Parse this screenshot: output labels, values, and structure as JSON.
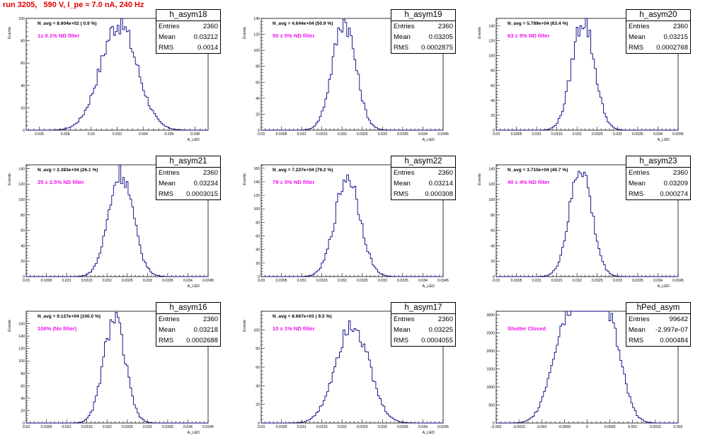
{
  "title": "run 3205,   590 V, I_pe ≈ 7.0 nA, 240 Hz",
  "axis_unit_label": "Events",
  "colors": {
    "hist_line": "#000080",
    "filter_text": "#ee11ee",
    "title_text": "#e00000"
  },
  "chart_data": [
    {
      "type": "histogram",
      "name": "h_asym18",
      "navg": "N_avg = 8.604e+02 ( 0.9 %)",
      "filter_label": "1± 0.1% ND filter",
      "stats": {
        "Entries": "2360",
        "Mean": "0.03212",
        "RMS": "0.0014"
      },
      "xlim": [
        0.025,
        0.039
      ],
      "ylim": [
        0,
        100
      ],
      "xticks": [
        "0.026",
        "0.028",
        "0.03",
        "0.032",
        "0.034",
        "0.036",
        "0.038"
      ],
      "xtick_values": [
        0.026,
        0.028,
        0.03,
        0.032,
        0.034,
        0.036,
        0.038
      ],
      "yticks": [
        0,
        20,
        40,
        60,
        80,
        100
      ],
      "xlabel": "A_LED",
      "ylabel": "Events",
      "mean": 0.03212,
      "rms": 0.0014,
      "peak": 97
    },
    {
      "type": "histogram",
      "name": "h_asym19",
      "navg": "N_avg = 4.644e+04 (50.9 %)",
      "filter_label": "50 ± 5% ND filter",
      "stats": {
        "Entries": "2360",
        "Mean": "0.03205",
        "RMS": "0.0002875"
      },
      "xlim": [
        0.03,
        0.0345
      ],
      "ylim": [
        0,
        140
      ],
      "xticks": [
        "0.03",
        "0.0305",
        "0.031",
        "0.0315",
        "0.032",
        "0.0325",
        "0.033",
        "0.0335",
        "0.034",
        "0.0345"
      ],
      "xtick_values": [
        0.03,
        0.0305,
        0.031,
        0.0315,
        0.032,
        0.0325,
        0.033,
        0.0335,
        0.034,
        0.0345
      ],
      "yticks": [
        0,
        20,
        40,
        60,
        80,
        100,
        120,
        140
      ],
      "xlabel": "A_LED",
      "ylabel": "Events",
      "mean": 0.03205,
      "rms": 0.0002875,
      "peak": 139
    },
    {
      "type": "histogram",
      "name": "h_asym20",
      "navg": "N_avg = 5.789e+04 (63.4 %)",
      "filter_label": "63 ± 5% ND filter",
      "stats": {
        "Entries": "2360",
        "Mean": "0.03215",
        "RMS": "0.0002768"
      },
      "xlim": [
        0.03,
        0.0345
      ],
      "ylim": [
        0,
        150
      ],
      "xticks": [
        "0.03",
        "0.0305",
        "0.031",
        "0.0315",
        "0.032",
        "0.0325",
        "0.033",
        "0.0335",
        "0.034",
        "0.0345"
      ],
      "xtick_values": [
        0.03,
        0.0305,
        0.031,
        0.0315,
        0.032,
        0.0325,
        0.033,
        0.0335,
        0.034,
        0.0345
      ],
      "yticks": [
        0,
        20,
        40,
        60,
        80,
        100,
        120,
        140
      ],
      "xlabel": "A_LED",
      "ylabel": "Events",
      "mean": 0.03215,
      "rms": 0.0002768,
      "peak": 150
    },
    {
      "type": "histogram",
      "name": "h_asym21",
      "navg": "N_avg = 2.383e+04 (26.1 %)",
      "filter_label": "25 ± 2.5% ND filter",
      "stats": {
        "Entries": "2360",
        "Mean": "0.03234",
        "RMS": "0.0003015"
      },
      "xlim": [
        0.03,
        0.0345
      ],
      "ylim": [
        0,
        145
      ],
      "xticks": [
        "0.03",
        "0.0305",
        "0.031",
        "0.0315",
        "0.032",
        "0.0325",
        "0.033",
        "0.0335",
        "0.034",
        "0.0345"
      ],
      "xtick_values": [
        0.03,
        0.0305,
        0.031,
        0.0315,
        0.032,
        0.0325,
        0.033,
        0.0335,
        0.034,
        0.0345
      ],
      "yticks": [
        0,
        20,
        40,
        60,
        80,
        100,
        120,
        140
      ],
      "xlabel": "A_LED",
      "ylabel": "Events",
      "mean": 0.03234,
      "rms": 0.0003015,
      "peak": 137
    },
    {
      "type": "histogram",
      "name": "h_asym22",
      "navg": "N_avg = 7.227e+04 (79.2 %)",
      "filter_label": "79 ± 5% ND filter",
      "stats": {
        "Entries": "2360",
        "Mean": "0.03214",
        "RMS": "0.000308"
      },
      "xlim": [
        0.03,
        0.0345
      ],
      "ylim": [
        0,
        165
      ],
      "xticks": [
        "0.03",
        "0.0305",
        "0.031",
        "0.0315",
        "0.032",
        "0.0325",
        "0.033",
        "0.0335",
        "0.034",
        "0.0345"
      ],
      "xtick_values": [
        0.03,
        0.0305,
        0.031,
        0.0315,
        0.032,
        0.0325,
        0.033,
        0.0335,
        0.034,
        0.0345
      ],
      "yticks": [
        0,
        20,
        40,
        60,
        80,
        100,
        120,
        140,
        160
      ],
      "xlabel": "A_LED",
      "ylabel": "Events",
      "mean": 0.03214,
      "rms": 0.000308,
      "peak": 150
    },
    {
      "type": "histogram",
      "name": "h_asym23",
      "navg": "N_avg = 3.710e+04 (40.7 %)",
      "filter_label": "40 ± 4% ND filter",
      "stats": {
        "Entries": "2360",
        "Mean": "0.03209",
        "RMS": "0.000274"
      },
      "xlim": [
        0.03,
        0.0345
      ],
      "ylim": [
        0,
        145
      ],
      "xticks": [
        "0.03",
        "0.0305",
        "0.031",
        "0.0315",
        "0.032",
        "0.0325",
        "0.033",
        "0.0335",
        "0.034",
        "0.0345"
      ],
      "xtick_values": [
        0.03,
        0.0305,
        0.031,
        0.0315,
        0.032,
        0.0325,
        0.033,
        0.0335,
        0.034,
        0.0345
      ],
      "yticks": [
        0,
        20,
        40,
        60,
        80,
        100,
        120,
        140
      ],
      "xlabel": "A_LED",
      "ylabel": "Events",
      "mean": 0.03209,
      "rms": 0.000274,
      "peak": 143
    },
    {
      "type": "histogram",
      "name": "h_asym16",
      "navg": "N_avg = 9.127e+04 (100.0 %)",
      "filter_label": "100% (No filter)",
      "stats": {
        "Entries": "2360",
        "Mean": "0.03218",
        "RMS": "0.0002688"
      },
      "xlim": [
        0.03,
        0.0345
      ],
      "ylim": [
        0,
        180
      ],
      "xticks": [
        "0.03",
        "0.0305",
        "0.031",
        "0.0315",
        "0.032",
        "0.0325",
        "0.033",
        "0.0335",
        "0.034",
        "0.0345"
      ],
      "xtick_values": [
        0.03,
        0.0305,
        0.031,
        0.0315,
        0.032,
        0.0325,
        0.033,
        0.0335,
        0.034,
        0.0345
      ],
      "yticks": [
        0,
        20,
        40,
        60,
        80,
        100,
        120,
        140,
        160
      ],
      "xlabel": "A_LED",
      "ylabel": "Events",
      "mean": 0.03218,
      "rms": 0.0002688,
      "peak": 170
    },
    {
      "type": "histogram",
      "name": "h_asym17",
      "navg": "N_avg = 8.667e+03 ( 9.5 %)",
      "filter_label": "10 ± 1% ND filter",
      "stats": {
        "Entries": "2360",
        "Mean": "0.03225",
        "RMS": "0.0004055"
      },
      "xlim": [
        0.03,
        0.0345
      ],
      "ylim": [
        0,
        120
      ],
      "xticks": [
        "0.03",
        "0.0305",
        "0.031",
        "0.0315",
        "0.032",
        "0.0325",
        "0.033",
        "0.0335",
        "0.034",
        "0.0345"
      ],
      "xtick_values": [
        0.03,
        0.0305,
        0.031,
        0.0315,
        0.032,
        0.0325,
        0.033,
        0.0335,
        0.034,
        0.0345
      ],
      "yticks": [
        0,
        20,
        40,
        60,
        80,
        100
      ],
      "xlabel": "A_LED",
      "ylabel": "Events",
      "mean": 0.03225,
      "rms": 0.0004055,
      "peak": 110
    },
    {
      "type": "histogram",
      "name": "hPed_asym",
      "navg": "",
      "filter_label": "Shutter Closed",
      "stats": {
        "Entries": "99642",
        "Mean": "-2.997e-07",
        "RMS": "0.000484"
      },
      "xlim": [
        -0.002,
        0.002
      ],
      "ylim": [
        0,
        3100
      ],
      "xticks": [
        "-0.002",
        "-0.0015",
        "-0.001",
        "-0.0005",
        "0",
        "0.0005",
        "0.001",
        "0.0015",
        "0.002"
      ],
      "xtick_values": [
        -0.002,
        -0.0015,
        -0.001,
        -0.0005,
        0,
        0.0005,
        0.001,
        0.0015,
        0.002
      ],
      "yticks": [
        0,
        500,
        1000,
        1500,
        2000,
        2500,
        3000
      ],
      "xlabel": "",
      "ylabel": "",
      "mean": 0.0,
      "rms": 0.000484,
      "peak": 3030,
      "bimodal": true
    }
  ]
}
